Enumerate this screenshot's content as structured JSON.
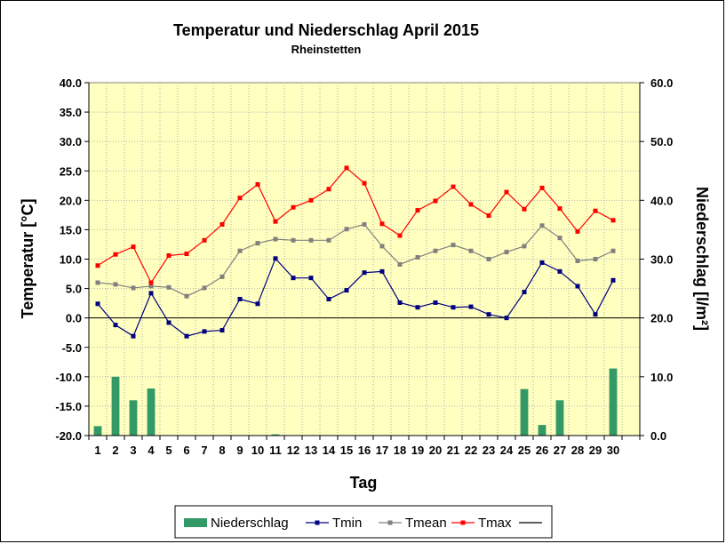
{
  "chart_data": {
    "type": "bar+line",
    "title": "Temperatur und Niederschlag April 2015",
    "subtitle": "Rheinstetten",
    "xlabel": "Tag",
    "ylabel_left": "Temperatur [°C]",
    "ylabel_right": "Niederschlag [l/m²]",
    "ylim_left": [
      -20,
      40
    ],
    "ylim_right": [
      0,
      60
    ],
    "yticks_left": [
      "40.0",
      "35.0",
      "30.0",
      "25.0",
      "20.0",
      "15.0",
      "10.0",
      "5.0",
      "0.0",
      "-5.0",
      "-10.0",
      "-15.0",
      "-20.0"
    ],
    "yticks_right": [
      "60.0",
      "50.0",
      "40.0",
      "30.0",
      "20.0",
      "10.0",
      "0.0"
    ],
    "x_extra_slots": 1,
    "categories": [
      "1",
      "2",
      "3",
      "4",
      "5",
      "6",
      "7",
      "8",
      "9",
      "10",
      "11",
      "12",
      "13",
      "14",
      "15",
      "16",
      "17",
      "18",
      "19",
      "20",
      "21",
      "22",
      "23",
      "24",
      "25",
      "26",
      "27",
      "28",
      "29",
      "30"
    ],
    "plot_background": "#ffffc0",
    "grid": true,
    "legend_position": "bottom",
    "bars": {
      "name": "Niederschlag",
      "color": "#339966",
      "values": [
        1.6,
        10,
        6,
        8,
        0,
        0,
        0,
        0,
        0,
        0,
        0.2,
        0,
        0,
        0,
        0,
        0,
        0,
        0,
        0,
        0,
        0,
        0,
        0,
        0,
        7.9,
        1.8,
        6,
        0,
        0,
        11.4
      ]
    },
    "series": [
      {
        "name": "Tmin",
        "color": "#000080",
        "values": [
          2.4,
          -1.2,
          -3.1,
          4.2,
          -0.8,
          -3.1,
          -2.3,
          -2.1,
          3.2,
          2.4,
          10.1,
          6.8,
          6.8,
          3.2,
          4.7,
          7.7,
          7.9,
          2.6,
          1.8,
          2.6,
          1.8,
          1.9,
          0.6,
          0,
          4.4,
          9.4,
          7.9,
          5.4,
          0.6,
          6.4
        ]
      },
      {
        "name": "Tmean",
        "color": "#808080",
        "values": [
          6.0,
          5.7,
          5.1,
          5.4,
          5.2,
          3.7,
          5.1,
          7.0,
          11.4,
          12.7,
          13.4,
          13.2,
          13.2,
          13.2,
          15.1,
          15.9,
          12.2,
          9.1,
          10.3,
          11.4,
          12.4,
          11.4,
          10.0,
          11.2,
          12.2,
          15.7,
          13.6,
          9.7,
          10.0,
          11.4
        ]
      },
      {
        "name": "Tmax",
        "color": "#ff0000",
        "values": [
          8.9,
          10.8,
          12.1,
          6.0,
          10.6,
          10.9,
          13.2,
          15.9,
          20.4,
          22.7,
          16.4,
          18.8,
          20.0,
          21.9,
          25.5,
          22.9,
          16.0,
          14.0,
          18.3,
          19.9,
          22.3,
          19.3,
          17.4,
          21.4,
          18.5,
          22.1,
          18.6,
          14.7,
          18.2,
          16.6
        ]
      }
    ],
    "extra_legend_entry": "",
    "extra_legend_color": "#000000"
  }
}
